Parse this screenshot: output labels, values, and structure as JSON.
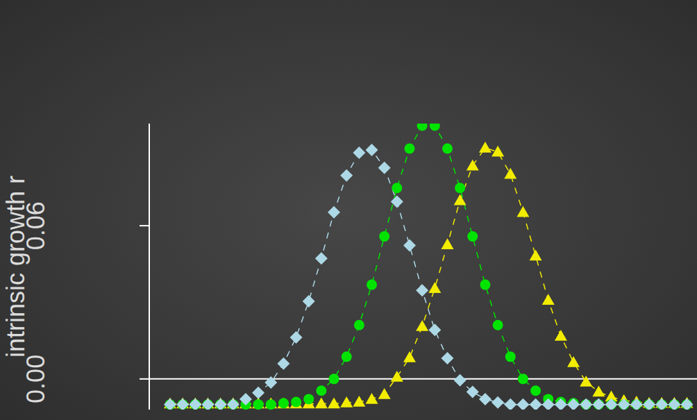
{
  "chart_data": {
    "type": "line",
    "y_label": "intrinsic growth r",
    "tick_labels": "y",
    "grid": false,
    "x": [
      0,
      1,
      2,
      3,
      4,
      5,
      6,
      7,
      8,
      9,
      10,
      11,
      12,
      13,
      14,
      15,
      16,
      17,
      18,
      19,
      20,
      21,
      22,
      23,
      24,
      25,
      26,
      27,
      28,
      29,
      30,
      31,
      32,
      33,
      34,
      35,
      36,
      37,
      38,
      39,
      40,
      41
    ],
    "xlim": [
      -1.65,
      41.8
    ],
    "ylim": [
      -0.012,
      0.1
    ],
    "yticks": [
      {
        "value": 0,
        "label": "0.00"
      },
      {
        "value": 0.06,
        "label": "0.06"
      }
    ],
    "series": [
      {
        "color": "#f2ec00",
        "marker": "triangle",
        "line_style": "dashed",
        "values": [
          -0.0097,
          -0.0097,
          -0.0097,
          -0.0097,
          -0.0097,
          -0.0097,
          -0.0097,
          -0.0097,
          -0.0097,
          -0.0097,
          -0.0097,
          -0.0097,
          -0.0097,
          -0.0097,
          -0.0093,
          -0.009,
          -0.0079,
          -0.006,
          0.0008,
          0.0084,
          0.0206,
          0.0355,
          0.0526,
          0.0699,
          0.0835,
          0.0905,
          0.0889,
          0.0802,
          0.0653,
          0.0482,
          0.0309,
          0.0168,
          0.0065,
          -0.0011,
          -0.0051,
          -0.007,
          -0.0084,
          -0.009,
          -0.0095,
          -0.0095,
          -0.0095,
          -0.0095
        ]
      },
      {
        "color": "#00e400",
        "marker": "circle",
        "line_style": "dashed",
        "values": [
          -0.01,
          -0.01,
          -0.01,
          -0.01,
          -0.01,
          -0.01,
          -0.01,
          -0.01,
          -0.01,
          -0.0095,
          -0.009,
          -0.0079,
          -0.0046,
          0,
          0.0087,
          0.0211,
          0.0369,
          0.0558,
          0.0748,
          0.0902,
          0.0992,
          0.0992,
          0.0902,
          0.0748,
          0.0558,
          0.0369,
          0.0211,
          0.0087,
          0,
          -0.0046,
          -0.0079,
          -0.009,
          -0.0095,
          -0.01,
          -0.01,
          -0.01,
          -0.01,
          -0.01,
          -0.01,
          -0.01,
          -0.01,
          -0.01
        ]
      },
      {
        "color": "#add8e6",
        "marker": "diamond",
        "line_style": "dashed",
        "values": [
          -0.01,
          -0.01,
          -0.01,
          -0.01,
          -0.01,
          -0.01,
          -0.0079,
          -0.0054,
          -0.0014,
          0.006,
          0.0163,
          0.0304,
          0.0472,
          0.0653,
          0.0797,
          0.0886,
          0.0897,
          0.0827,
          0.0694,
          0.0523,
          0.0347,
          0.0192,
          0.0081,
          -0.0005,
          -0.0051,
          -0.0079,
          -0.0092,
          -0.01,
          -0.01,
          -0.01,
          -0.01,
          -0.01,
          -0.01,
          -0.01,
          -0.01,
          -0.01,
          -0.01,
          -0.01,
          -0.01,
          -0.01,
          -0.01,
          -0.01
        ]
      }
    ]
  }
}
